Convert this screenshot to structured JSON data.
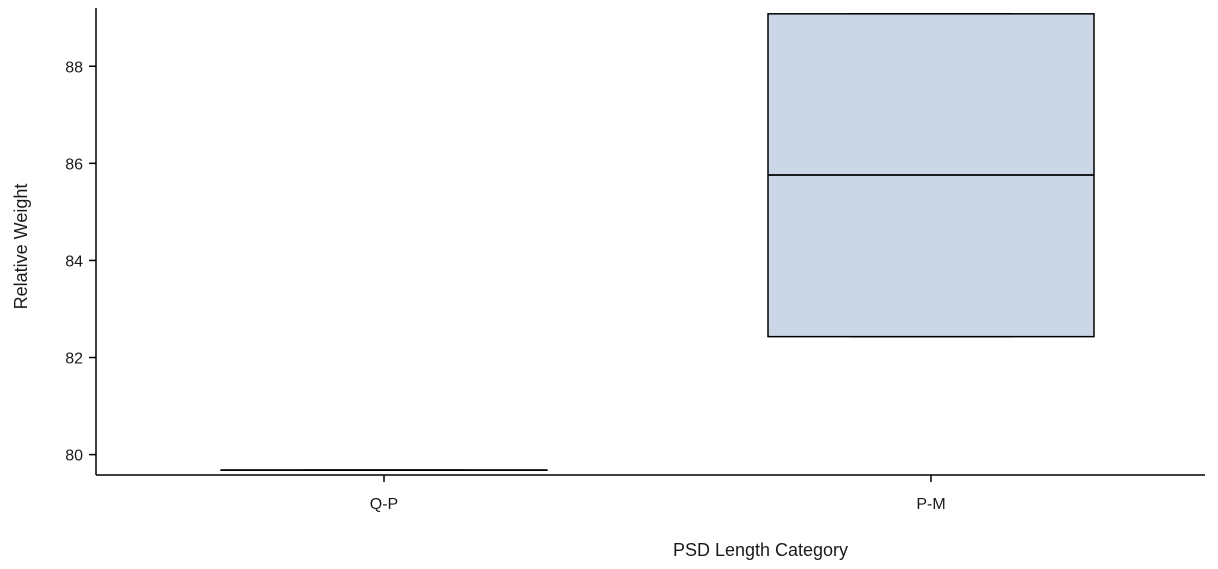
{
  "chart_data": {
    "type": "box",
    "xlabel": "PSD Length Category",
    "ylabel": "Relative Weight",
    "categories": [
      "Q-P",
      "P-M"
    ],
    "boxes": [
      {
        "category": "Q-P",
        "min": 79.68,
        "q1": 79.68,
        "median": 79.68,
        "q3": 79.68,
        "max": 79.68
      },
      {
        "category": "P-M",
        "min": 82.43,
        "q1": 82.43,
        "median": 85.76,
        "q3": 89.08,
        "max": 89.08
      }
    ],
    "ylim": [
      79.58,
      89.2
    ],
    "yticks": [
      80,
      82,
      84,
      86,
      88
    ],
    "ytick_labels": [
      "80",
      "82",
      "84",
      "86",
      "88"
    ],
    "box_fill_color": "#cbd7e6",
    "line_color": "#000000",
    "grid": false
  }
}
